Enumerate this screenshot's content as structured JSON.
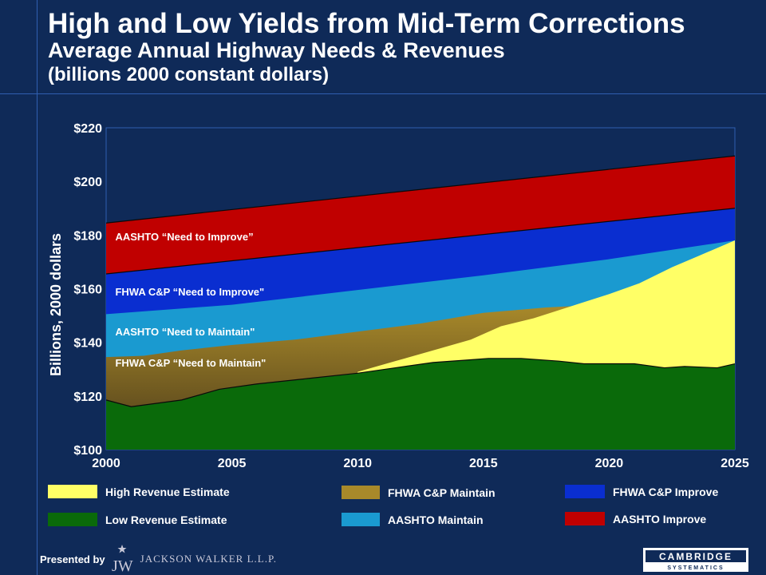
{
  "header": {
    "title": "High and Low Yields from Mid-Term Corrections",
    "subtitle": "Average Annual Highway Needs & Revenues",
    "subtitle2": "(billions 2000 constant dollars)"
  },
  "chart_data": {
    "type": "area",
    "ylabel": "Billions, 2000 dollars",
    "xlim": [
      2000,
      2025
    ],
    "ylim": [
      100,
      220
    ],
    "x_ticks": [
      "2000",
      "2005",
      "2010",
      "2015",
      "2020",
      "2025"
    ],
    "y_ticks": [
      "$100",
      "$120",
      "$140",
      "$160",
      "$180",
      "$200",
      "$220"
    ],
    "grid": false,
    "series": [
      {
        "name": "AASHTO Improve",
        "key": "aashto_improve",
        "color": "#c00000",
        "x": [
          2000,
          2025
        ],
        "y": [
          184.5,
          209.5
        ]
      },
      {
        "name": "FHWA C&P Improve",
        "key": "fhwa_improve",
        "color": "#0a2ed0",
        "x": [
          2000,
          2025
        ],
        "y": [
          165.5,
          190
        ]
      },
      {
        "name": "AASHTO Maintain",
        "key": "aashto_maintain",
        "color": "#1a9ad0",
        "x": [
          2000,
          2005,
          2010,
          2015,
          2020,
          2025
        ],
        "y": [
          150.5,
          154,
          159.5,
          165,
          171,
          178
        ]
      },
      {
        "name": "FHWA C&P Maintain",
        "key": "fhwa_maintain",
        "color": "#a8892a",
        "x": [
          2000,
          2001.5,
          2003,
          2005,
          2007.5,
          2010,
          2012.5,
          2015,
          2017.5,
          2018.5
        ],
        "y": [
          134.5,
          135,
          137,
          139,
          141,
          144,
          147,
          151,
          153,
          153.5
        ]
      },
      {
        "name": "High Revenue Estimate",
        "key": "high_revenue",
        "color": "#ffff66",
        "x": [
          2010,
          2011.5,
          2013,
          2014.5,
          2015.7,
          2017,
          2018.5,
          2020,
          2021.2,
          2022.5,
          2023.5,
          2025
        ],
        "y": [
          129,
          133,
          137,
          141,
          146,
          149,
          153.5,
          158,
          162,
          168,
          172,
          178
        ]
      },
      {
        "name": "Low Revenue Estimate",
        "key": "low_revenue",
        "color": "#0a6a0a",
        "x": [
          2000,
          2001,
          2003,
          2004.5,
          2006,
          2008,
          2010,
          2011.5,
          2013,
          2014.5,
          2015.2,
          2016.5,
          2018,
          2019,
          2021,
          2022.2,
          2023,
          2024.3,
          2025
        ],
        "y": [
          118.5,
          116,
          118.5,
          122.5,
          124.5,
          126.5,
          128.5,
          130.5,
          132.5,
          133.5,
          134,
          134,
          133,
          132,
          132,
          130.5,
          131,
          130.5,
          132
        ]
      }
    ],
    "annotations": [
      {
        "text": "AASHTO “Need to Improve”",
        "x": 2000.3,
        "y": 179.5
      },
      {
        "text": "FHWA C&P “Need to Improve\"",
        "x": 2000.3,
        "y": 159
      },
      {
        "text": "AASHTO “Need to Maintain\"",
        "x": 2000.3,
        "y": 144
      },
      {
        "text": "FHWA C&P “Need to Maintain\"",
        "x": 2000.3,
        "y": 132.5
      }
    ],
    "legend": {
      "placement": "bottom",
      "items": [
        {
          "label": "High Revenue Estimate",
          "color": "#ffff66"
        },
        {
          "label": "Low Revenue Estimate",
          "color": "#0a6a0a"
        },
        {
          "label": "FHWA C&P Maintain",
          "color": "#a8892a"
        },
        {
          "label": "AASHTO Maintain",
          "color": "#1a9ad0"
        },
        {
          "label": "FHWA C&P Improve",
          "color": "#0a2ed0"
        },
        {
          "label": "AASHTO Improve",
          "color": "#c00000"
        }
      ]
    }
  },
  "footer": {
    "presented_by": "Presented by",
    "jw_logo_text": "JACKSON WALKER L.L.P.",
    "cambridge_logo_text": "CAMBRIDGE",
    "cambridge_sub_text": "SYSTEMATICS"
  },
  "colors": {
    "background": "#0f2a58",
    "rule": "#2f5fb0"
  }
}
